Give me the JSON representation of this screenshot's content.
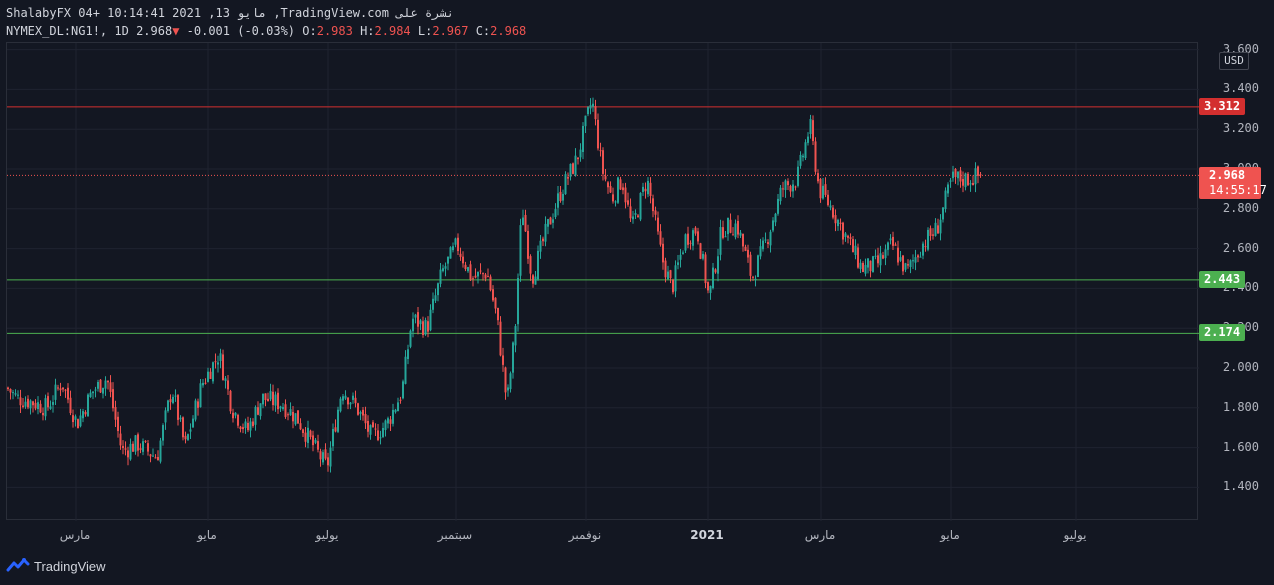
{
  "header": {
    "line1": "ShalabyFX 04+ 10:14:41 2021 ,13 مايو ,TradingView.com نشرة على",
    "symbol": "NYMEX_DL:NG1!, 1D",
    "last": "2.968",
    "change_arrow": "▼",
    "change": "-0.001 (-0.03%)",
    "o_label": "O:",
    "o_value": "2.983",
    "h_label": "H:",
    "h_value": "2.984",
    "l_label": "L:",
    "l_value": "2.967",
    "c_label": "C:",
    "c_value": "2.968"
  },
  "axis": {
    "currency": "USD",
    "price_ticks": [
      "3.600",
      "3.400",
      "3.200",
      "3.000",
      "2.800",
      "2.600",
      "2.400",
      "2.200",
      "2.000",
      "1.800",
      "1.600",
      "1.400"
    ],
    "time_ticks": [
      {
        "label": "مارس",
        "bold": false
      },
      {
        "label": "مايو",
        "bold": false
      },
      {
        "label": "يوليو",
        "bold": false
      },
      {
        "label": "سبتمبر",
        "bold": false
      },
      {
        "label": "نوفمبر",
        "bold": false
      },
      {
        "label": "2021",
        "bold": true
      },
      {
        "label": "مارس",
        "bold": false
      },
      {
        "label": "مايو",
        "bold": false
      },
      {
        "label": "يوليو",
        "bold": false
      }
    ]
  },
  "levels": {
    "resistance": {
      "label": "3.312",
      "value": 3.312,
      "color": "#d32f2f"
    },
    "support1": {
      "label": "2.443",
      "value": 2.443,
      "color": "#4caf50"
    },
    "support2": {
      "label": "2.174",
      "value": 2.174,
      "color": "#4caf50"
    }
  },
  "last_price": {
    "label": "2.968",
    "countdown": "14:55:17",
    "color": "#ef5350"
  },
  "footer": {
    "brand": "TradingView"
  },
  "chart_data": {
    "type": "candlestick",
    "symbol": "NYMEX_DL:NG1!",
    "interval": "1D",
    "ylim": [
      1.3,
      3.6
    ],
    "up_color": "#26a69a",
    "down_color": "#ef5350",
    "close_path": [
      [
        0,
        1.9
      ],
      [
        10,
        1.85
      ],
      [
        25,
        1.83
      ],
      [
        40,
        1.8
      ],
      [
        55,
        1.93
      ],
      [
        70,
        1.72
      ],
      [
        85,
        1.88
      ],
      [
        100,
        1.95
      ],
      [
        115,
        1.58
      ],
      [
        130,
        1.62
      ],
      [
        150,
        1.55
      ],
      [
        165,
        1.9
      ],
      [
        178,
        1.6
      ],
      [
        195,
        1.92
      ],
      [
        212,
        2.07
      ],
      [
        225,
        1.8
      ],
      [
        240,
        1.68
      ],
      [
        255,
        1.85
      ],
      [
        275,
        1.82
      ],
      [
        290,
        1.75
      ],
      [
        305,
        1.62
      ],
      [
        320,
        1.5
      ],
      [
        335,
        1.9
      ],
      [
        350,
        1.8
      ],
      [
        365,
        1.65
      ],
      [
        380,
        1.72
      ],
      [
        395,
        1.88
      ],
      [
        405,
        2.25
      ],
      [
        420,
        2.2
      ],
      [
        435,
        2.48
      ],
      [
        450,
        2.62
      ],
      [
        465,
        2.45
      ],
      [
        480,
        2.48
      ],
      [
        490,
        2.25
      ],
      [
        500,
        1.82
      ],
      [
        508,
        2.18
      ],
      [
        515,
        2.82
      ],
      [
        525,
        2.45
      ],
      [
        540,
        2.7
      ],
      [
        555,
        2.9
      ],
      [
        570,
        3.05
      ],
      [
        585,
        3.35
      ],
      [
        595,
        3.0
      ],
      [
        605,
        2.85
      ],
      [
        615,
        2.95
      ],
      [
        625,
        2.7
      ],
      [
        640,
        2.95
      ],
      [
        655,
        2.55
      ],
      [
        665,
        2.4
      ],
      [
        678,
        2.65
      ],
      [
        690,
        2.7
      ],
      [
        702,
        2.35
      ],
      [
        715,
        2.7
      ],
      [
        730,
        2.72
      ],
      [
        745,
        2.45
      ],
      [
        760,
        2.65
      ],
      [
        775,
        2.9
      ],
      [
        790,
        2.95
      ],
      [
        803,
        3.22
      ],
      [
        812,
        2.9
      ],
      [
        825,
        2.8
      ],
      [
        840,
        2.65
      ],
      [
        855,
        2.5
      ],
      [
        870,
        2.52
      ],
      [
        885,
        2.62
      ],
      [
        900,
        2.48
      ],
      [
        915,
        2.62
      ],
      [
        930,
        2.7
      ],
      [
        945,
        2.95
      ],
      [
        960,
        2.95
      ],
      [
        975,
        2.97
      ]
    ]
  }
}
